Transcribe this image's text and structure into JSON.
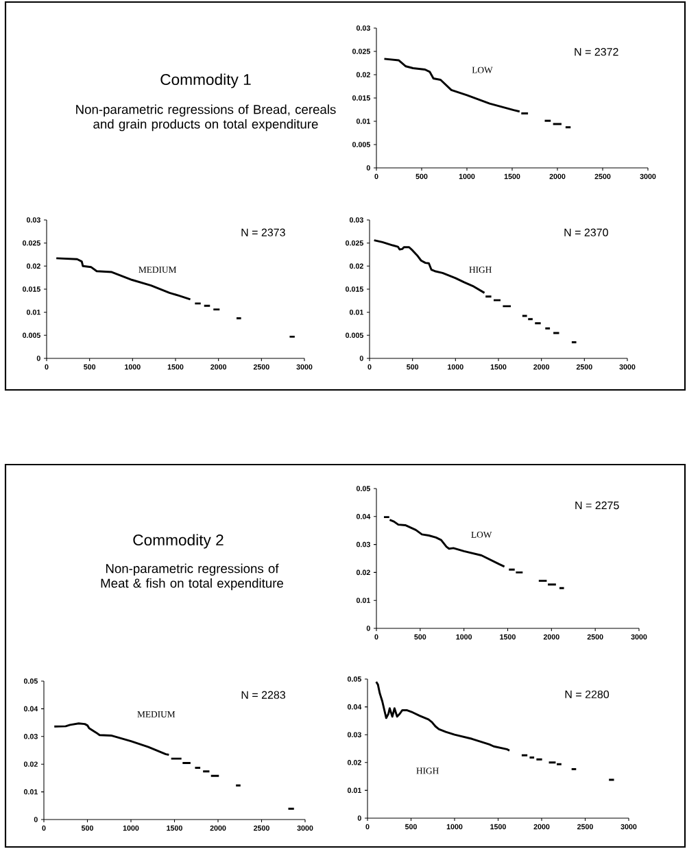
{
  "chart_data": [
    {
      "type": "other",
      "title": "Commodity 1",
      "subtitle": "Non-parametric regressions of Bread, cereals and grain products on total expenditure"
    },
    {
      "type": "line",
      "xlim": [
        0,
        3000
      ],
      "ylim": [
        0,
        0.03
      ],
      "xticks": [
        0,
        500,
        1000,
        1500,
        2000,
        2500,
        3000
      ],
      "yticks": [
        0,
        0.005,
        0.01,
        0.015,
        0.02,
        0.025,
        0.03
      ],
      "annotations": [
        "N = 2372",
        "LOW"
      ],
      "series": [
        {
          "color": "#000000",
          "x": [
            87,
            246,
            325,
            405,
            537,
            590,
            630,
            709,
            828,
            1000,
            1251,
            1516,
            1582,
            1590,
            1601,
            1675,
            1760,
            1860,
            1926,
            1940,
            1952,
            2045,
            2070,
            2090,
            2146
          ],
          "values": [
            0.0234,
            0.0231,
            0.0218,
            0.0214,
            0.0211,
            0.0206,
            0.0192,
            0.0189,
            0.0167,
            0.0156,
            0.0138,
            0.0124,
            0.0121,
            null,
            0.0117,
            0.0117,
            null,
            0.0101,
            0.0101,
            null,
            0.0094,
            0.0094,
            null,
            0.0087,
            0.0087
          ]
        }
      ]
    },
    {
      "type": "line",
      "xlim": [
        0,
        3000
      ],
      "ylim": [
        0,
        0.03
      ],
      "xticks": [
        0,
        500,
        1000,
        1500,
        2000,
        2500,
        3000
      ],
      "yticks": [
        0,
        0.005,
        0.01,
        0.015,
        0.02,
        0.025,
        0.03
      ],
      "annotations": [
        "N = 2373",
        "MEDIUM"
      ],
      "series": [
        {
          "color": "#000000",
          "x": [
            113,
            355,
            409,
            422,
            516,
            583,
            758,
            995,
            1215,
            1430,
            1538,
            1672,
            1700,
            1726,
            1793,
            1810,
            1833,
            1901,
            1920,
            1941,
            2013,
            2100,
            2210,
            2263,
            2500,
            2828,
            2887
          ],
          "values": [
            0.0217,
            0.0215,
            0.021,
            0.02,
            0.0198,
            0.0189,
            0.0187,
            0.017,
            0.0158,
            0.0142,
            0.0136,
            0.0128,
            null,
            0.0119,
            0.0119,
            null,
            0.0114,
            0.0114,
            null,
            0.0106,
            0.0106,
            null,
            0.0087,
            0.0087,
            null,
            0.0047,
            0.0047
          ]
        }
      ]
    },
    {
      "type": "line",
      "xlim": [
        0,
        3000
      ],
      "ylim": [
        0,
        0.03
      ],
      "xticks": [
        0,
        500,
        1000,
        1500,
        2000,
        2500,
        3000
      ],
      "yticks": [
        0,
        0.005,
        0.01,
        0.015,
        0.02,
        0.025,
        0.03
      ],
      "annotations": [
        "N = 2370",
        "HIGH"
      ],
      "series": [
        {
          "color": "#000000",
          "x": [
            53,
            150,
            270,
            330,
            350,
            380,
            400,
            460,
            500,
            560,
            600,
            650,
            690,
            720,
            760,
            850,
            1000,
            1100,
            1200,
            1337,
            1345,
            1350,
            1417,
            1430,
            1444,
            1524,
            1540,
            1551,
            1644,
            1700,
            1778,
            1832,
            1840,
            1845,
            1898,
            1910,
            1925,
            1992,
            2020,
            2045,
            2099,
            2120,
            2139,
            2206,
            2280,
            2353,
            2406
          ],
          "values": [
            0.0256,
            0.0252,
            0.0245,
            0.0242,
            0.0236,
            0.0237,
            0.0241,
            0.0241,
            0.0234,
            0.0222,
            0.0212,
            0.0207,
            0.0206,
            0.0192,
            0.0189,
            0.0185,
            0.0174,
            0.0165,
            0.0157,
            0.0142,
            null,
            0.0134,
            0.0134,
            null,
            0.0126,
            0.0126,
            null,
            0.0113,
            0.0113,
            null,
            0.0092,
            0.0092,
            null,
            0.0085,
            0.0085,
            null,
            0.0076,
            0.0076,
            null,
            0.0065,
            0.0065,
            null,
            0.0055,
            0.0055,
            null,
            0.0035,
            0.0035
          ]
        }
      ]
    },
    {
      "type": "other",
      "title": "Commodity 2",
      "subtitle": "Non-parametric regressions of Meat & fish on total expenditure"
    },
    {
      "type": "line",
      "xlim": [
        0,
        3000
      ],
      "ylim": [
        0,
        0.05
      ],
      "xticks": [
        0,
        500,
        1000,
        1500,
        2000,
        2500,
        3000
      ],
      "yticks": [
        0,
        0.01,
        0.02,
        0.03,
        0.04,
        0.05
      ],
      "annotations": [
        "N = 2275",
        "LOW"
      ],
      "series": [
        {
          "color": "#000000",
          "x": [
            86,
            147,
            150,
            152,
            200,
            250,
            330,
            450,
            520,
            600,
            680,
            740,
            800,
            830,
            880,
            1000,
            1200,
            1400,
            1462,
            1490,
            1514,
            1580,
            1587,
            1593,
            1671,
            1760,
            1855,
            1946,
            1952,
            1959,
            2051,
            2070,
            2091,
            2143
          ],
          "values": [
            0.0398,
            0.0398,
            null,
            0.0388,
            0.0382,
            0.0371,
            0.0369,
            0.0352,
            0.0336,
            0.0332,
            0.0325,
            0.0316,
            0.0292,
            0.0285,
            0.0287,
            0.0276,
            0.0261,
            0.023,
            0.0221,
            null,
            0.021,
            0.021,
            null,
            0.02,
            0.02,
            null,
            0.017,
            0.017,
            null,
            0.0157,
            0.0157,
            null,
            0.0144,
            0.0144
          ]
        }
      ]
    },
    {
      "type": "line",
      "xlim": [
        0,
        3000
      ],
      "ylim": [
        0,
        0.05
      ],
      "xticks": [
        0,
        500,
        1000,
        1500,
        2000,
        2500,
        3000
      ],
      "yticks": [
        0,
        0.01,
        0.02,
        0.03,
        0.04,
        0.05
      ],
      "annotations": [
        "N = 2283",
        "MEDIUM"
      ],
      "series": [
        {
          "color": "#000000",
          "x": [
            120,
            250,
            300,
            400,
            470,
            500,
            520,
            560,
            600,
            640,
            780,
            1000,
            1200,
            1400,
            1436,
            1450,
            1462,
            1580,
            1587,
            1593,
            1684,
            1710,
            1736,
            1796,
            1810,
            1828,
            1901,
            1910,
            1919,
            2010,
            2100,
            2206,
            2258,
            2500,
            2807,
            2872
          ],
          "values": [
            0.0336,
            0.0337,
            0.0342,
            0.0347,
            0.0345,
            0.034,
            0.033,
            0.0322,
            0.0314,
            0.0305,
            0.0303,
            0.0283,
            0.0262,
            0.0236,
            0.0234,
            null,
            0.022,
            0.022,
            null,
            0.0204,
            0.0204,
            null,
            0.0187,
            0.0187,
            null,
            0.0174,
            0.0174,
            null,
            0.0158,
            0.0158,
            null,
            0.0123,
            0.0123,
            null,
            0.0039,
            0.0039
          ]
        }
      ]
    },
    {
      "type": "line",
      "xlim": [
        0,
        3000
      ],
      "ylim": [
        0,
        0.05
      ],
      "xticks": [
        0,
        500,
        1000,
        1500,
        2000,
        2500,
        3000
      ],
      "yticks": [
        0,
        0.01,
        0.02,
        0.03,
        0.04,
        0.05
      ],
      "annotations": [
        "N = 2280",
        "HIGH"
      ],
      "series": [
        {
          "color": "#000000",
          "x": [
            100,
            120,
            130,
            140,
            150,
            170,
            200,
            215,
            240,
            255,
            285,
            310,
            340,
            370,
            400,
            450,
            520,
            600,
            700,
            740,
            780,
            820,
            900,
            1000,
            1200,
            1400,
            1450,
            1600,
            1630,
            1700,
            1771,
            1836,
            1850,
            1862,
            1914,
            1930,
            1940,
            2005,
            2050,
            2083,
            2161,
            2168,
            2174,
            2227,
            2300,
            2344,
            2396,
            2600,
            2773,
            2831
          ],
          "values": [
            0.049,
            0.048,
            0.0465,
            0.045,
            0.044,
            0.042,
            0.038,
            0.036,
            0.0375,
            0.0395,
            0.0365,
            0.0395,
            0.0365,
            0.0375,
            0.0388,
            0.0388,
            0.038,
            0.0368,
            0.0355,
            0.0345,
            0.033,
            0.032,
            0.031,
            0.03,
            0.0285,
            0.0265,
            0.0258,
            0.0248,
            0.0243,
            null,
            0.0226,
            0.0226,
            null,
            0.0218,
            0.0218,
            null,
            0.0211,
            0.0211,
            null,
            0.02,
            0.02,
            null,
            0.0194,
            0.0194,
            null,
            0.0176,
            0.0176,
            null,
            0.0138,
            0.0138
          ]
        }
      ]
    }
  ]
}
